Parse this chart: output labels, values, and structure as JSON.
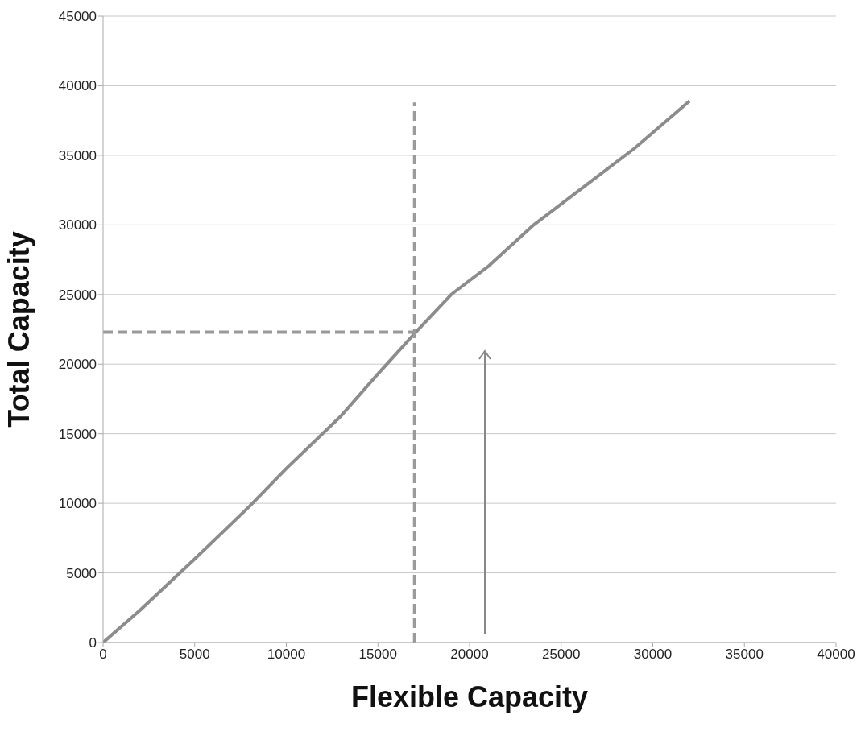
{
  "chart_data": {
    "type": "line",
    "xlabel": "Flexible Capacity",
    "ylabel": "Total Capacity",
    "xlim": [
      0,
      40000
    ],
    "ylim": [
      0,
      45000
    ],
    "xticks": [
      0,
      5000,
      10000,
      15000,
      20000,
      25000,
      30000,
      35000,
      40000
    ],
    "yticks": [
      0,
      5000,
      10000,
      15000,
      20000,
      25000,
      30000,
      35000,
      40000,
      45000
    ],
    "grid": "y",
    "marker": "none",
    "series": [
      {
        "color": "#8c8c8c",
        "line_style": "solid",
        "x": [
          0,
          2000,
          5000,
          8000,
          10000,
          13000,
          15000,
          17000,
          19000,
          21000,
          23500,
          26000,
          29000,
          32000
        ],
        "values": [
          0,
          2300,
          6000,
          9800,
          12500,
          16300,
          19300,
          22200,
          25000,
          27000,
          30000,
          32500,
          35500,
          38900
        ]
      },
      {
        "color": "#9a9a9a",
        "line_style": "dashed",
        "x": [
          0,
          17000
        ],
        "values": [
          22300,
          22300
        ]
      },
      {
        "color": "#9a9a9a",
        "line_style": "dashed",
        "x": [
          17000,
          17000
        ],
        "values": [
          0,
          38800
        ]
      }
    ]
  }
}
